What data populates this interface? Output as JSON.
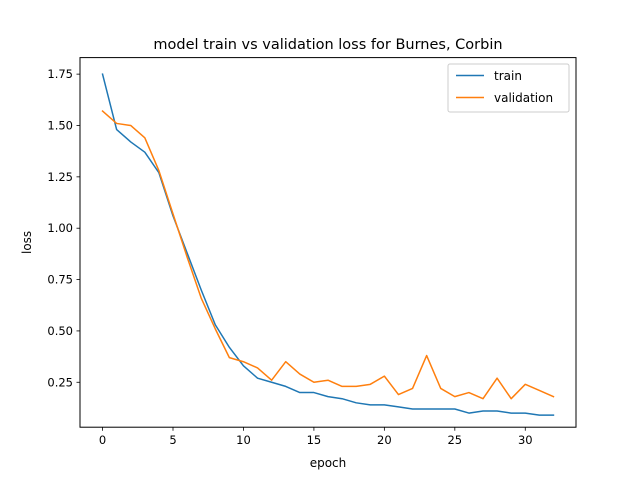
{
  "chart_data": {
    "type": "line",
    "title": "model train vs validation loss for Burnes, Corbin",
    "xlabel": "epoch",
    "ylabel": "loss",
    "xlim": [
      -1.6,
      33.6
    ],
    "ylim": [
      0.0313,
      1.8305
    ],
    "xticks": [
      0,
      5,
      10,
      15,
      20,
      25,
      30
    ],
    "yticks": [
      0.25,
      0.5,
      0.75,
      1.0,
      1.25,
      1.5,
      1.75
    ],
    "ytick_labels": [
      "0.25",
      "0.50",
      "0.75",
      "1.00",
      "1.25",
      "1.50",
      "1.75"
    ],
    "legend_position": "top-right",
    "grid": false,
    "x": [
      0,
      1,
      2,
      3,
      4,
      5,
      6,
      7,
      8,
      9,
      10,
      11,
      12,
      13,
      14,
      15,
      16,
      17,
      18,
      19,
      20,
      21,
      22,
      23,
      24,
      25,
      26,
      27,
      28,
      29,
      30,
      31,
      32
    ],
    "series": [
      {
        "name": "train",
        "color": "#1f77b4",
        "values": [
          1.75,
          1.48,
          1.42,
          1.37,
          1.27,
          1.06,
          0.88,
          0.7,
          0.53,
          0.42,
          0.33,
          0.27,
          0.25,
          0.23,
          0.2,
          0.2,
          0.18,
          0.17,
          0.15,
          0.14,
          0.14,
          0.13,
          0.12,
          0.12,
          0.12,
          0.12,
          0.1,
          0.11,
          0.11,
          0.1,
          0.1,
          0.09,
          0.09
        ]
      },
      {
        "name": "validation",
        "color": "#ff7f0e",
        "values": [
          1.57,
          1.51,
          1.5,
          1.44,
          1.28,
          1.07,
          0.86,
          0.66,
          0.51,
          0.37,
          0.35,
          0.32,
          0.26,
          0.35,
          0.29,
          0.25,
          0.26,
          0.23,
          0.23,
          0.24,
          0.28,
          0.19,
          0.22,
          0.38,
          0.22,
          0.18,
          0.2,
          0.17,
          0.27,
          0.17,
          0.24,
          0.21,
          0.18
        ]
      }
    ]
  }
}
